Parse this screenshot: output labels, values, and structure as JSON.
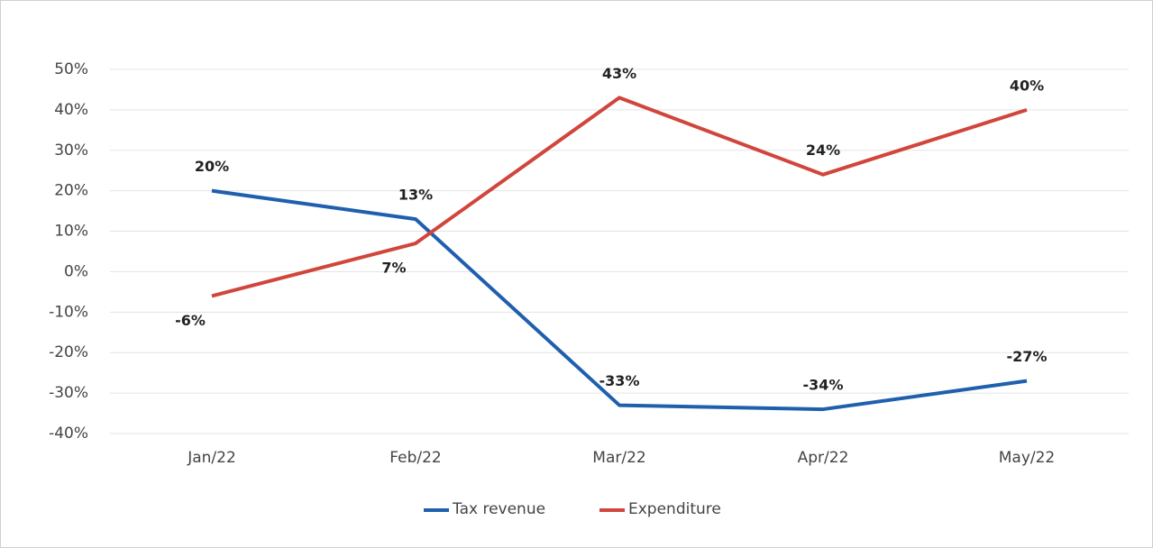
{
  "chart_data": {
    "type": "line",
    "categories": [
      "Jan/22",
      "Feb/22",
      "Mar/22",
      "Apr/22",
      "May/22"
    ],
    "series": [
      {
        "name": "Tax revenue",
        "color": "#1f5fae",
        "values": [
          20,
          13,
          -33,
          -34,
          -27
        ],
        "value_labels": [
          "20%",
          "13%",
          "-33%",
          "-34%",
          "-27%"
        ]
      },
      {
        "name": "Expenditure",
        "color": "#d0463c",
        "values": [
          -6,
          7,
          43,
          24,
          40
        ],
        "value_labels": [
          "-6%",
          "7%",
          "43%",
          "24%",
          "40%"
        ]
      }
    ],
    "ylim": [
      -40,
      50
    ],
    "yticks": [
      {
        "value": -40,
        "label": "-40%"
      },
      {
        "value": -30,
        "label": "-30%"
      },
      {
        "value": -20,
        "label": "-20%"
      },
      {
        "value": -10,
        "label": "-10%"
      },
      {
        "value": 0,
        "label": "0%"
      },
      {
        "value": 10,
        "label": "10%"
      },
      {
        "value": 20,
        "label": "20%"
      },
      {
        "value": 30,
        "label": "30%"
      },
      {
        "value": 40,
        "label": "40%"
      },
      {
        "value": 50,
        "label": "50%"
      }
    ],
    "grid": true,
    "legend": "bottom"
  }
}
